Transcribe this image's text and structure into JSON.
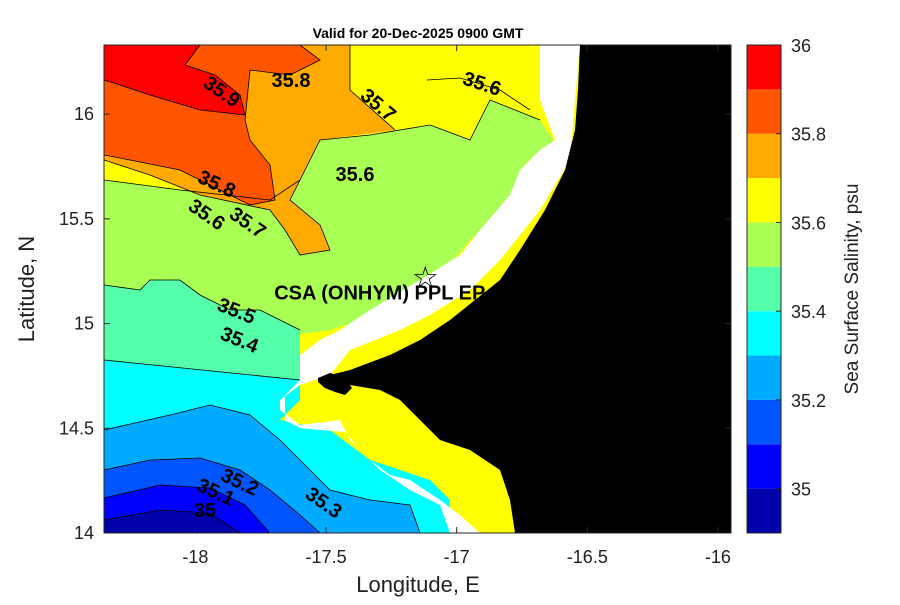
{
  "chart_data": {
    "type": "contour",
    "title": "Valid for 20-Dec-2025 0900 GMT",
    "xlabel": "Longitude, E",
    "ylabel": "Latitude, N",
    "xlim": [
      -18.35,
      -15.95
    ],
    "ylim": [
      14.0,
      16.33
    ],
    "x_ticks": [
      "-18",
      "-17.5",
      "-17",
      "-16.5",
      "-16"
    ],
    "x_tick_values": [
      -18,
      -17.5,
      -17,
      -16.5,
      -16
    ],
    "y_ticks": [
      "14",
      "14.5",
      "15",
      "15.5",
      "16"
    ],
    "y_tick_values": [
      14,
      14.5,
      15,
      15.5,
      16
    ],
    "colorbar": {
      "label": "Sea Surface Salinity, psu",
      "ticks": [
        "35",
        "35.2",
        "35.4",
        "35.6",
        "35.8",
        "36"
      ],
      "tick_values": [
        35,
        35.2,
        35.4,
        35.6,
        35.8,
        36
      ],
      "range": [
        34.9,
        36.0
      ],
      "levels": [
        {
          "min": 34.9,
          "max": 35.0,
          "color": "#0000aa"
        },
        {
          "min": 35.0,
          "max": 35.1,
          "color": "#0000ff"
        },
        {
          "min": 35.1,
          "max": 35.2,
          "color": "#0055ff"
        },
        {
          "min": 35.2,
          "max": 35.3,
          "color": "#00aaff"
        },
        {
          "min": 35.3,
          "max": 35.4,
          "color": "#00ffff"
        },
        {
          "min": 35.4,
          "max": 35.5,
          "color": "#55ffaa"
        },
        {
          "min": 35.5,
          "max": 35.6,
          "color": "#aaff55"
        },
        {
          "min": 35.6,
          "max": 35.7,
          "color": "#ffff00"
        },
        {
          "min": 35.7,
          "max": 35.8,
          "color": "#ffaa00"
        },
        {
          "min": 35.8,
          "max": 35.9,
          "color": "#ff5500"
        },
        {
          "min": 35.9,
          "max": 36.0,
          "color": "#ff0000"
        }
      ]
    },
    "contour_labels": [
      "35.9",
      "35.8",
      "35.7",
      "35.6",
      "35.6",
      "35.8",
      "35.7",
      "35.6",
      "35.5",
      "35.4",
      "35.2",
      "35.1",
      "35",
      "35.3"
    ],
    "marker": {
      "symbol": "☆",
      "lon": -17.12,
      "lat": 15.22,
      "label": "CSA (ONHYM) PPL EP"
    },
    "land_color": "#000000",
    "nodata_color": "#ffffff"
  }
}
